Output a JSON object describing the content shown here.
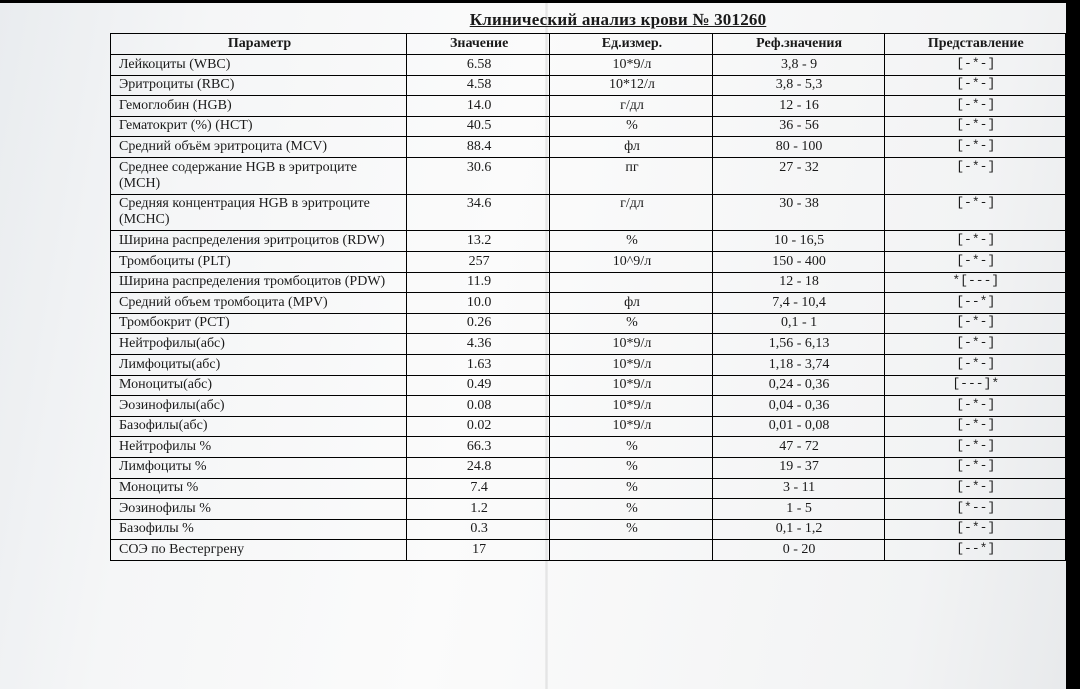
{
  "document": {
    "title": "Клинический анализ крови № 301260",
    "columns": [
      "Параметр",
      "Значение",
      "Ед.измер.",
      "Реф.значения",
      "Представление"
    ],
    "column_widths_pct": [
      31,
      15,
      17,
      18,
      19
    ],
    "font_family": "Times New Roman",
    "border_color": "#000000",
    "text_color": "#1a1a1a",
    "background_gradient": [
      "#e9ecef",
      "#fbfbfb",
      "#e7e9eb"
    ]
  },
  "rows": [
    {
      "param": "Лейкоциты (WBC)",
      "value": "6.58",
      "unit": "10*9/л",
      "ref": "3,8 - 9",
      "rep": "[-*-]"
    },
    {
      "param": "Эритроциты (RBC)",
      "value": "4.58",
      "unit": "10*12/л",
      "ref": "3,8 - 5,3",
      "rep": "[-*-]"
    },
    {
      "param": "Гемоглобин (HGB)",
      "value": "14.0",
      "unit": "г/дл",
      "ref": "12 - 16",
      "rep": "[-*-]"
    },
    {
      "param": "Гематокрит (%) (HCT)",
      "value": "40.5",
      "unit": "%",
      "ref": "36 - 56",
      "rep": "[-*-]"
    },
    {
      "param": "Средний объём эритроцита (MCV)",
      "value": "88.4",
      "unit": "фл",
      "ref": "80 - 100",
      "rep": "[-*-]"
    },
    {
      "param": "Среднее содержание HGB в эритроците (MCH)",
      "value": "30.6",
      "unit": "пг",
      "ref": "27 - 32",
      "rep": "[-*-]"
    },
    {
      "param": "Средняя концентрация HGB в эритроците (MCHC)",
      "value": "34.6",
      "unit": "г/дл",
      "ref": "30 - 38",
      "rep": "[-*-]"
    },
    {
      "param": "Ширина распределения эритроцитов (RDW)",
      "value": "13.2",
      "unit": "%",
      "ref": "10 - 16,5",
      "rep": "[-*-]"
    },
    {
      "param": "Тромбоциты (PLT)",
      "value": "257",
      "unit": "10^9/л",
      "ref": "150 - 400",
      "rep": "[-*-]"
    },
    {
      "param": "Ширина распределения тромбоцитов (PDW)",
      "value": "11.9",
      "unit": "",
      "ref": "12 - 18",
      "rep": "*[---]"
    },
    {
      "param": "Средний объем тромбоцита (MPV)",
      "value": "10.0",
      "unit": "фл",
      "ref": "7,4 - 10,4",
      "rep": "[--*]"
    },
    {
      "param": "Тромбокрит (PCT)",
      "value": "0.26",
      "unit": "%",
      "ref": "0,1 - 1",
      "rep": "[-*-]"
    },
    {
      "param": "Нейтрофилы(абс)",
      "value": "4.36",
      "unit": "10*9/л",
      "ref": "1,56 - 6,13",
      "rep": "[-*-]"
    },
    {
      "param": "Лимфоциты(абс)",
      "value": "1.63",
      "unit": "10*9/л",
      "ref": "1,18 - 3,74",
      "rep": "[-*-]"
    },
    {
      "param": "Моноциты(абс)",
      "value": "0.49",
      "unit": "10*9/л",
      "ref": "0,24 - 0,36",
      "rep": "[---]*"
    },
    {
      "param": "Эозинофилы(абс)",
      "value": "0.08",
      "unit": "10*9/л",
      "ref": "0,04 - 0,36",
      "rep": "[-*-]"
    },
    {
      "param": "Базофилы(абс)",
      "value": "0.02",
      "unit": "10*9/л",
      "ref": "0,01 - 0,08",
      "rep": "[-*-]"
    },
    {
      "param": "Нейтрофилы %",
      "value": "66.3",
      "unit": "%",
      "ref": "47 - 72",
      "rep": "[-*-]"
    },
    {
      "param": "Лимфоциты %",
      "value": "24.8",
      "unit": "%",
      "ref": "19 - 37",
      "rep": "[-*-]"
    },
    {
      "param": "Моноциты %",
      "value": "7.4",
      "unit": "%",
      "ref": "3 - 11",
      "rep": "[-*-]"
    },
    {
      "param": "Эозинофилы %",
      "value": "1.2",
      "unit": "%",
      "ref": "1 - 5",
      "rep": "[*--]"
    },
    {
      "param": "Базофилы %",
      "value": "0.3",
      "unit": "%",
      "ref": "0,1 - 1,2",
      "rep": "[-*-]"
    },
    {
      "param": "СОЭ по Вестергрену",
      "value": "17",
      "unit": "",
      "ref": "0 - 20",
      "rep": "[--*]"
    }
  ]
}
